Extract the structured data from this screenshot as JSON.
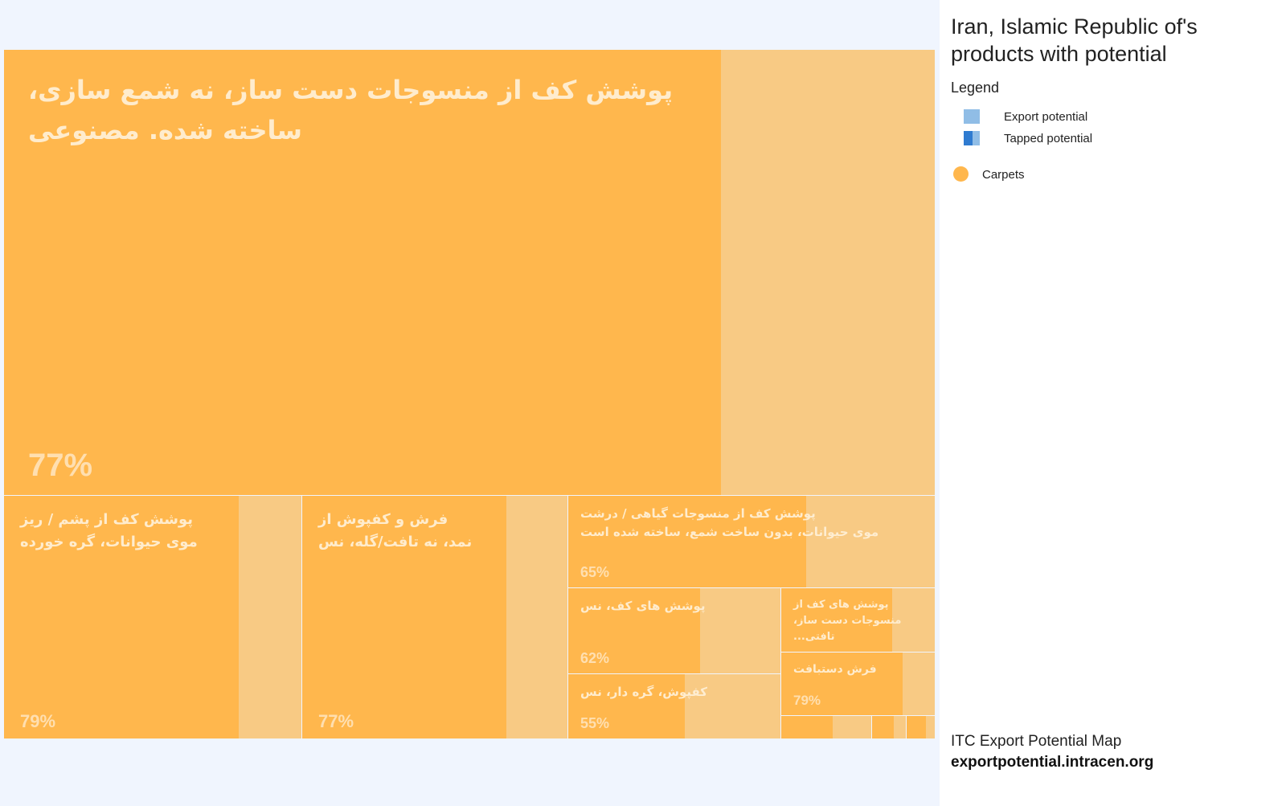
{
  "sidebar": {
    "title": "Iran, Islamic Republic of's products with potential",
    "legend_heading": "Legend",
    "legend_export": "Export potential",
    "legend_tapped": "Tapped potential",
    "legend_sector": "Carpets",
    "footer_name": "ITC Export Potential Map",
    "footer_url": "exportpotential.intracen.org"
  },
  "colors": {
    "tapped": "#ffb74d",
    "untapped": "#f8ca84",
    "background": "#f0f5fe",
    "legend_export": "#90bde6",
    "legend_tapped": "#2f7bd0"
  },
  "chart_data": {
    "type": "treemap",
    "title": "Iran, Islamic Republic of's products with potential",
    "sector": "Carpets",
    "items": [
      {
        "label": "پوشش کف از منسوجات دست ساز، نه شمع سازی،\nساخته شده. مصنوعی",
        "pct_label": "77%",
        "tapped": 0.77
      },
      {
        "label": "پوشش کف از پشم / ریز\nموی حیوانات، گره خورده",
        "pct_label": "79%",
        "tapped": 0.79
      },
      {
        "label": "فرش و کفپوش از\nنمد، نه تافت/گله، نس",
        "pct_label": "77%",
        "tapped": 0.77
      },
      {
        "label": "پوشش کف از منسوجات گیاهی / درشت\nموی حیوانات، بدون ساخت شمع، ساخته شده است",
        "pct_label": "65%",
        "tapped": 0.65
      },
      {
        "label": "پوشش های کف، نس",
        "pct_label": "62%",
        "tapped": 0.62
      },
      {
        "label": "کفپوش، گره دار، نس",
        "pct_label": "55%",
        "tapped": 0.55
      },
      {
        "label": "پوشش های کف از\nمنسوجات دست ساز، تافتی...",
        "pct_label": "",
        "tapped": 0.72
      },
      {
        "label": "فرش دستبافت",
        "pct_label": "79%",
        "tapped": 0.79
      },
      {
        "label": "",
        "pct_label": "",
        "tapped": 0.57
      },
      {
        "label": "",
        "pct_label": "",
        "tapped": 0.64
      },
      {
        "label": "",
        "pct_label": "",
        "tapped": 0.69
      }
    ]
  }
}
